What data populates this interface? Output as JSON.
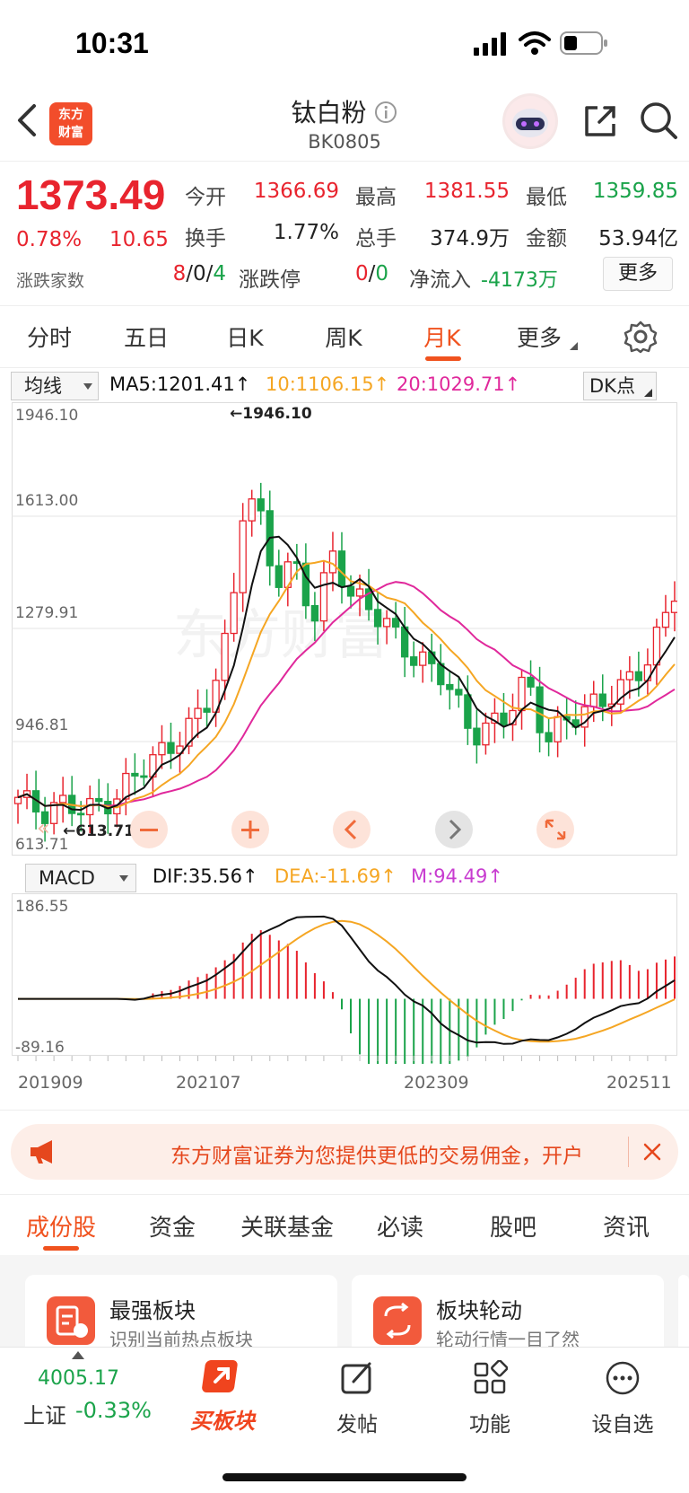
{
  "status_bar": {
    "time": "10:31"
  },
  "header": {
    "title": "钛白粉",
    "code": "BK0805",
    "logo_line1": "东方",
    "logo_line2": "财富",
    "icons": [
      "back-arrow-icon",
      "info-icon",
      "robot-avatar-icon",
      "share-icon",
      "search-icon"
    ]
  },
  "quote": {
    "price": "1373.49",
    "change_pct": "0.78%",
    "change": "10.65",
    "open_label": "今开",
    "open": "1366.69",
    "high_label": "最高",
    "high": "1381.55",
    "low_label": "最低",
    "low": "1359.85",
    "turnover_label": "换手",
    "turnover": "1.77%",
    "volume_label": "总手",
    "volume": "374.9万",
    "amount_label": "金额",
    "amount": "53.94亿",
    "advdec_label": "涨跌家数",
    "adv": "8",
    "sep1": "/",
    "flat": "0",
    "sep2": "/",
    "dec": "4",
    "limit_label": "涨跌停",
    "limit_up": "0",
    "limit_sep": "/",
    "limit_down": "0",
    "netflow_label": "净流入",
    "netflow": "-4173万",
    "more": "更多"
  },
  "period_tabs": {
    "items": [
      "分时",
      "五日",
      "日K",
      "周K",
      "月K",
      "更多"
    ],
    "active": "月K"
  },
  "ma_bar": {
    "select": "均线",
    "ma5": "MA5:1201.41",
    "ma10": "10:1106.15",
    "ma20": "20:1029.71",
    "dk": "DK点",
    "colors": {
      "ma5": "#111111",
      "ma10": "#f5a623",
      "ma20": "#e0289b",
      "up": "#e8242e",
      "down": "#1aa34a"
    }
  },
  "kline": {
    "y_labels": [
      "1946.10",
      "1613.00",
      "1279.91",
      "946.81",
      "613.71"
    ],
    "high_marker": "←1946.10",
    "low_marker": "←613.71",
    "ylim": [
      613.71,
      1946.1
    ]
  },
  "macd_bar": {
    "select": "MACD",
    "dif": "DIF:35.56",
    "dea": "DEA:-11.69",
    "m": "M:94.49"
  },
  "macd": {
    "y_labels": [
      "186.55",
      "-89.16"
    ],
    "x_labels": [
      "201909",
      "202107",
      "202309",
      "202511"
    ],
    "ylim": [
      -89.16,
      186.55
    ]
  },
  "banner": {
    "text": "东方财富证券为您提供更低的交易佣金，开户"
  },
  "stock_tabs": {
    "items": [
      "成份股",
      "资金",
      "关联基金",
      "必读",
      "股吧",
      "资讯"
    ],
    "active": "成份股"
  },
  "cards": [
    {
      "title": "最强板块",
      "subtitle": "识别当前热点板块"
    },
    {
      "title": "板块轮动",
      "subtitle": "轮动行情一目了然"
    }
  ],
  "bottom_nav": {
    "index_value": "4005.17",
    "index_name": "上证",
    "index_change": "-0.33%",
    "buy_label": "买板块",
    "post_label": "发帖",
    "func_label": "功能",
    "watch_label": "设自选"
  },
  "chart_data": {
    "type": "candlestick",
    "period": "monthly",
    "x_labels": [
      "201909",
      "202107",
      "202309",
      "202511"
    ],
    "ylim": [
      613.71,
      1946.1
    ],
    "series_hint": "MA5 / MA10 / MA20 moving averages over monthly candles",
    "highest": 1946.1,
    "lowest": 613.71
  }
}
